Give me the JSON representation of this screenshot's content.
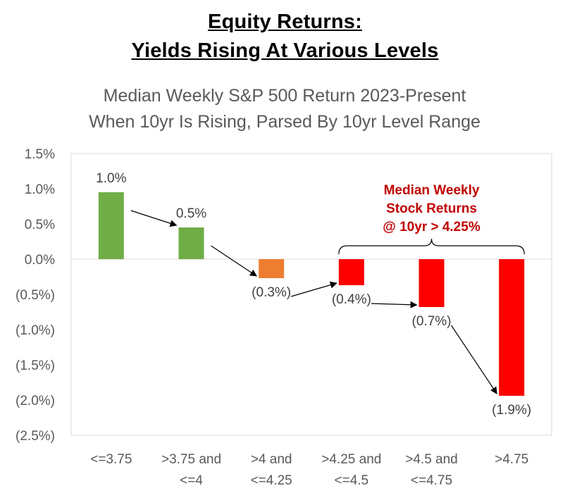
{
  "header": {
    "line1": "Equity Returns:",
    "line2": "Yields Rising At Various Levels"
  },
  "chart_data": {
    "type": "bar",
    "title": "Median Weekly S&P 500 Return 2023-Present",
    "subtitle": "When 10yr Is Rising, Parsed By 10yr Level Range",
    "categories": [
      [
        "<=3.75"
      ],
      [
        ">3.75 and",
        "<=4"
      ],
      [
        ">4 and",
        "<=4.25"
      ],
      [
        ">4.25 and",
        "<=4.5"
      ],
      [
        ">4.5 and",
        "<=4.75"
      ],
      [
        ">4.75"
      ]
    ],
    "values": [
      0.95,
      0.45,
      -0.27,
      -0.37,
      -0.68,
      -1.94
    ],
    "data_labels": [
      "1.0%",
      "0.5%",
      "(0.3%)",
      "(0.4%)",
      "(0.7%)",
      "(1.9%)"
    ],
    "bar_colors": [
      "#70ad47",
      "#70ad47",
      "#ed7d31",
      "#ff0000",
      "#ff0000",
      "#ff0000"
    ],
    "ylim": [
      -2.5,
      1.5
    ],
    "yticks": [
      1.5,
      1.0,
      0.5,
      0.0,
      -0.5,
      -1.0,
      -1.5,
      -2.0,
      -2.5
    ],
    "ytick_labels": [
      "1.5%",
      "1.0%",
      "0.5%",
      "0.0%",
      "(0.5%)",
      "(1.0%)",
      "(1.5%)",
      "(2.0%)",
      "(2.5%)"
    ],
    "annotation": {
      "lines": [
        "Median Weekly",
        "Stock Returns",
        "@ 10yr > 4.25%"
      ],
      "color": "#c00000",
      "spans_categories": [
        3,
        5
      ]
    },
    "arrows": "between consecutive bars",
    "grid": false,
    "xlabel": "",
    "ylabel": ""
  }
}
